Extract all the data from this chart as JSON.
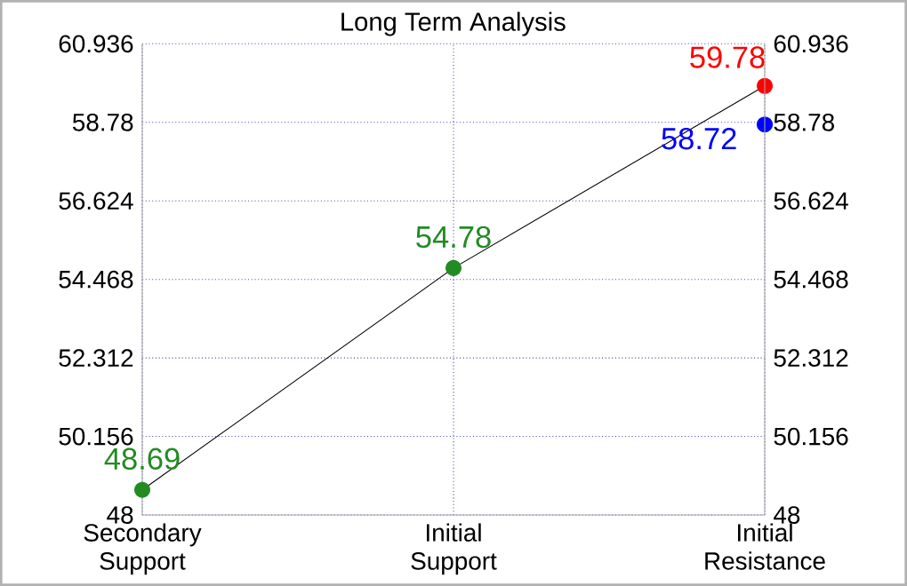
{
  "chart_data": {
    "type": "line",
    "title": "Long Term Analysis",
    "categories": [
      "Secondary Support",
      "Initial Support",
      "Initial Resistance"
    ],
    "ylim": [
      48,
      60.936
    ],
    "yticks": [
      48,
      50.156,
      52.312,
      54.468,
      56.624,
      58.78,
      60.936
    ],
    "y2lim": [
      48,
      60.936
    ],
    "y2ticks": [
      48,
      50.156,
      52.312,
      54.468,
      56.624,
      58.78,
      60.936
    ],
    "grid": true,
    "series": [
      {
        "color": "#000000",
        "marker": "none",
        "values": [
          48.69,
          54.78,
          59.78
        ]
      },
      {
        "type": "scatter",
        "color": "#228b22",
        "marker": "circle",
        "values": [
          48.69,
          54.78,
          null
        ],
        "value_labels": [
          "48.69",
          "54.78",
          null
        ]
      },
      {
        "type": "scatter",
        "color": "#0000ff",
        "marker": "circle",
        "values": [
          null,
          null,
          58.72
        ],
        "value_labels": [
          null,
          null,
          "58.72"
        ]
      },
      {
        "type": "scatter",
        "color": "#ff0000",
        "marker": "circle",
        "values": [
          null,
          null,
          59.78
        ],
        "value_labels": [
          null,
          null,
          "59.78"
        ]
      }
    ]
  }
}
